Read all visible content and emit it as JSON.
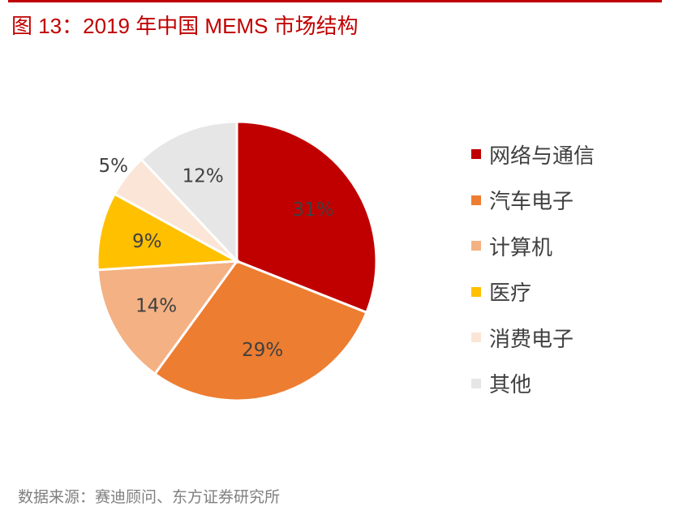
{
  "title": "图 13：2019 年中国 MEMS 市场结构",
  "source": "数据来源：赛迪顾问、东方证券研究所",
  "chart_data": {
    "type": "pie",
    "title": "",
    "start_angle": "top, clockwise",
    "legend_position": "right",
    "categories": [
      "网络与通信",
      "汽车电子",
      "计算机",
      "医疗",
      "消费电子",
      "其他"
    ],
    "values": [
      31,
      29,
      14,
      9,
      5,
      12
    ],
    "labels": [
      "31%",
      "29%",
      "14%",
      "9%",
      "5%",
      "12%"
    ],
    "colors": [
      "#C00000",
      "#ED7D31",
      "#F4B183",
      "#FFC000",
      "#FBE5D6",
      "#E7E6E6"
    ]
  }
}
